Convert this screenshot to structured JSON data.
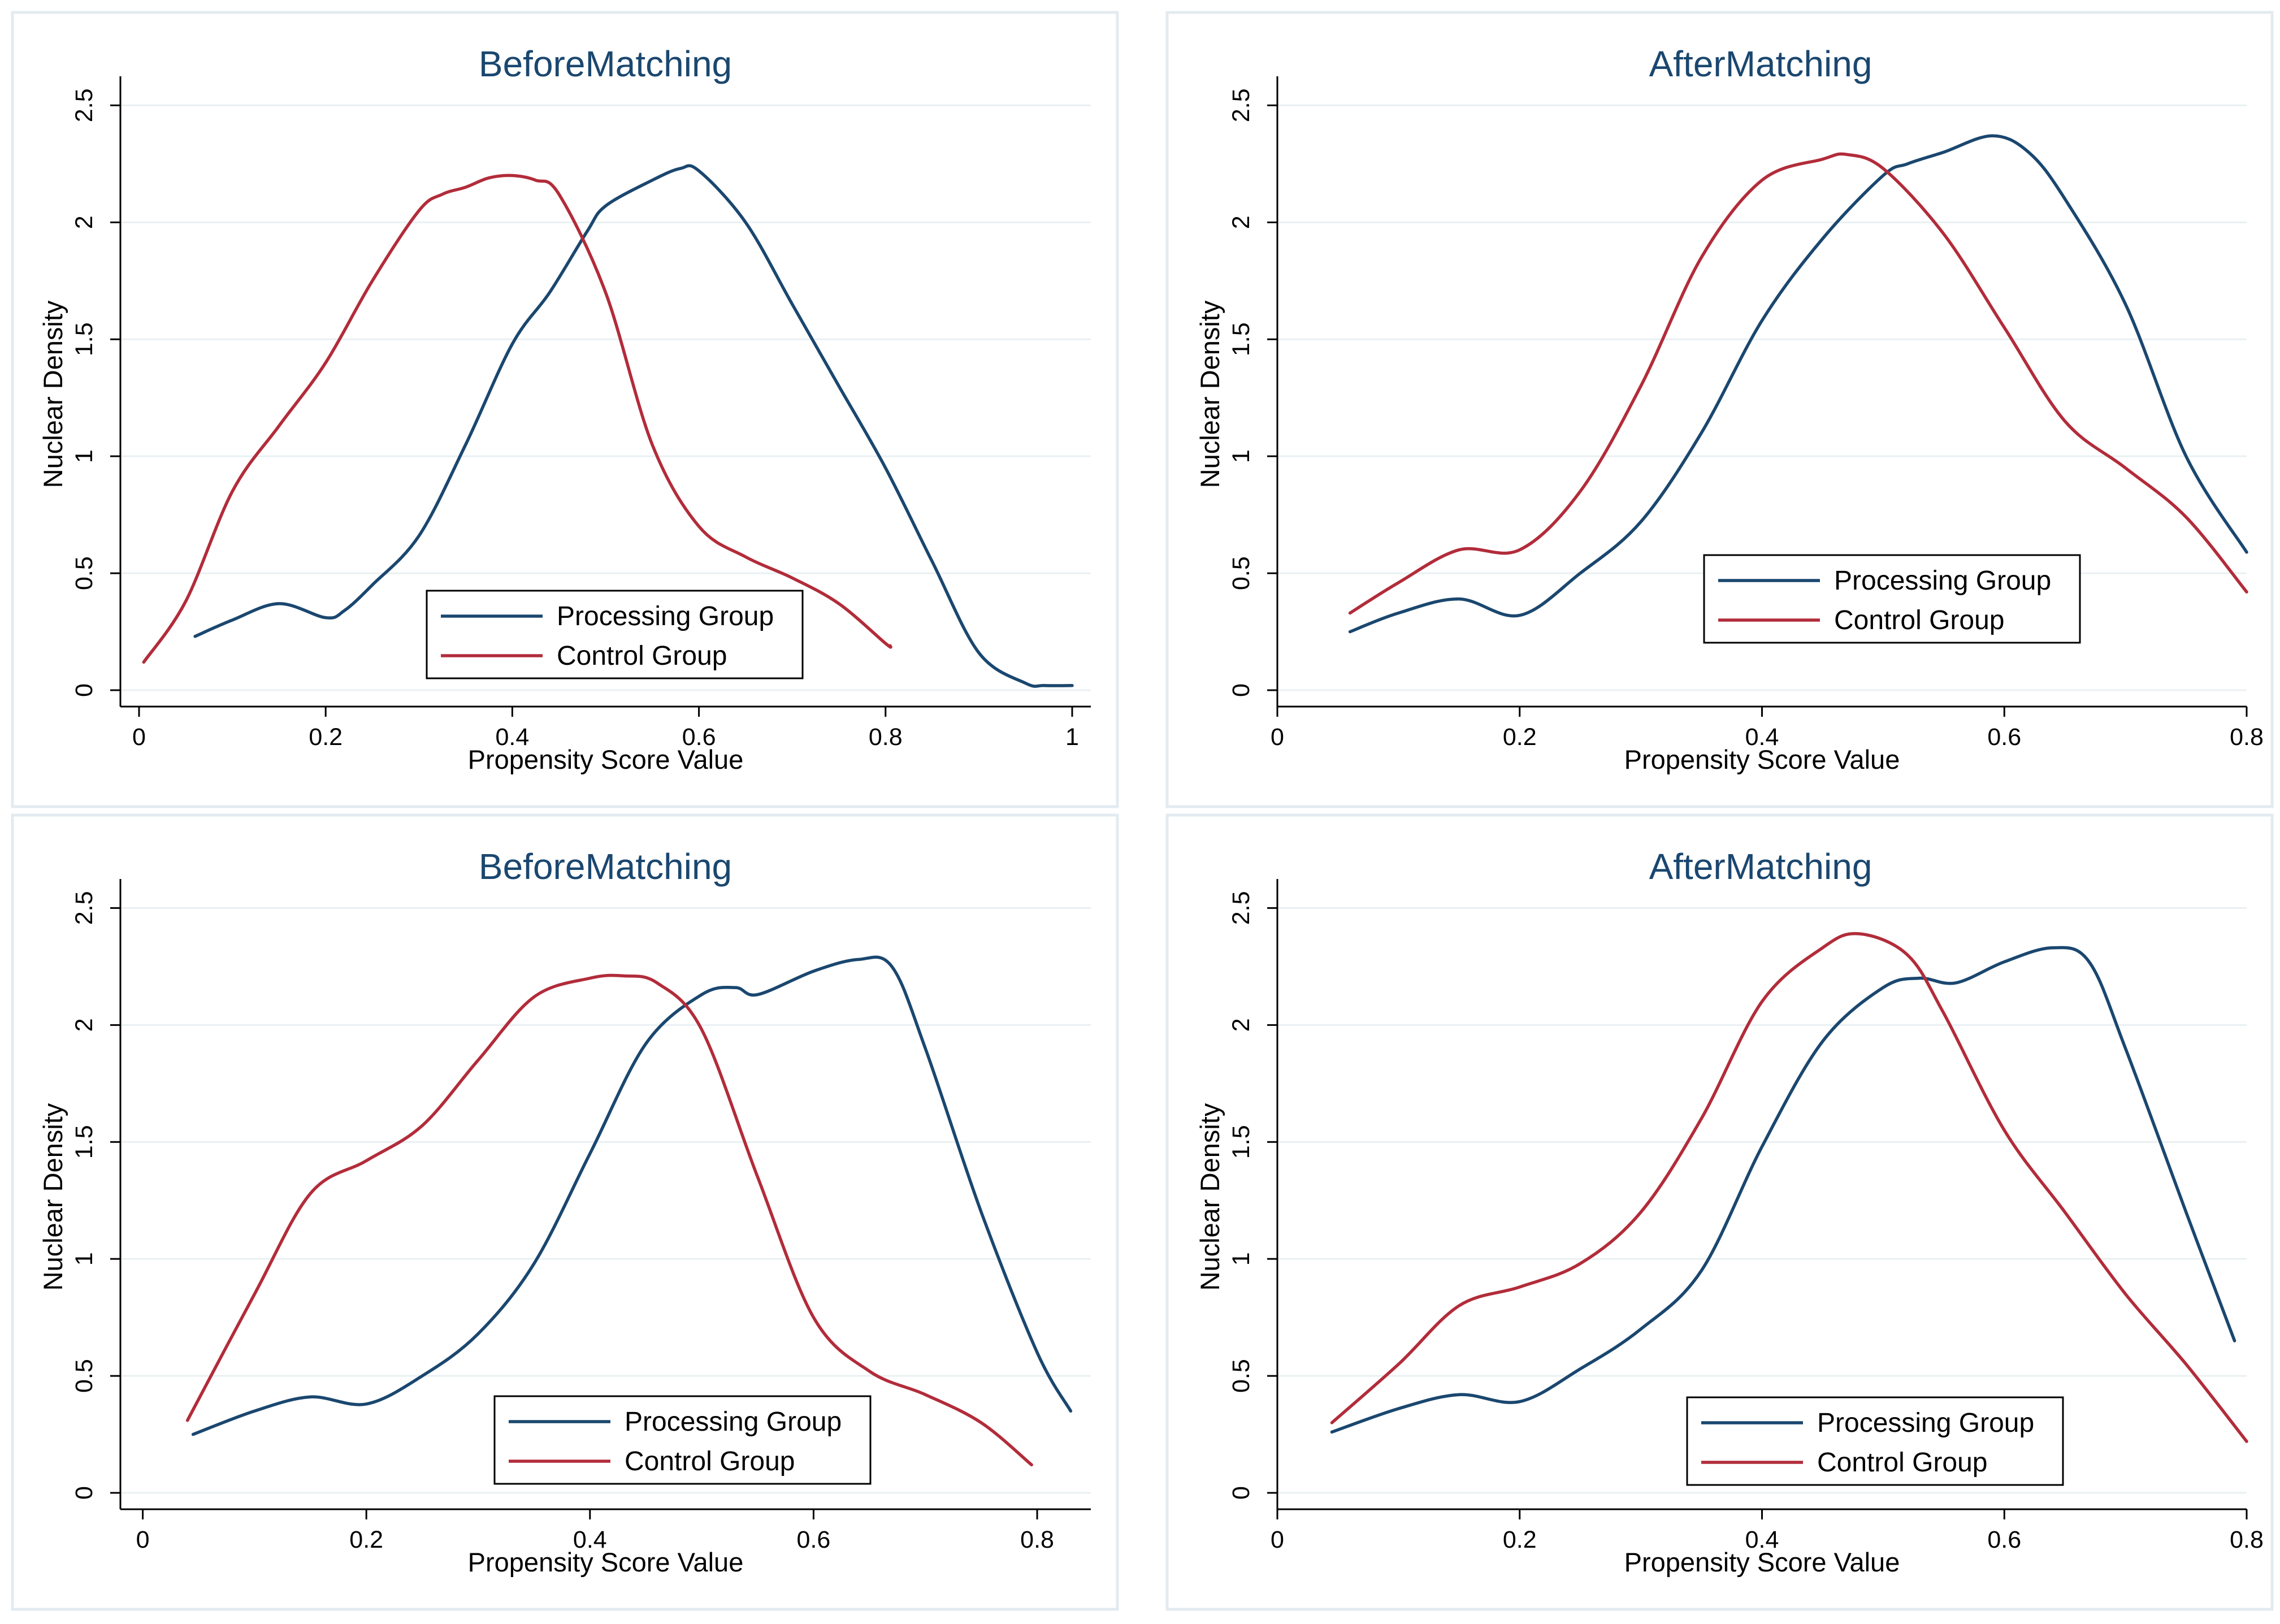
{
  "colors": {
    "processing": "#1a476f",
    "control": "#b22c3a",
    "title": "#1a476f"
  },
  "chart_data": [
    {
      "type": "line",
      "title": "BeforeMatching",
      "xlabel": "Propensity Score Value",
      "ylabel": "Nuclear Density",
      "xlim": [
        -0.02,
        1.02
      ],
      "ylim": [
        -0.07,
        2.6
      ],
      "xticks": [
        0,
        0.2,
        0.4,
        0.6,
        0.8,
        1
      ],
      "xtick_labels": [
        "0",
        "0.2",
        "0.4",
        "0.6",
        "0.8",
        "1"
      ],
      "yticks": [
        0,
        0.5,
        1,
        1.5,
        2,
        2.5
      ],
      "ytick_labels": [
        "0",
        "0.5",
        "1",
        "1.5",
        "2",
        "2.5"
      ],
      "grid": true,
      "legend_position": "bottom-center",
      "series": [
        {
          "name": "Processing Group",
          "color": "#1a476f",
          "x": [
            0.06,
            0.1,
            0.15,
            0.2,
            0.22,
            0.25,
            0.3,
            0.35,
            0.4,
            0.44,
            0.48,
            0.5,
            0.55,
            0.58,
            0.6,
            0.65,
            0.7,
            0.75,
            0.8,
            0.85,
            0.9,
            0.95,
            0.97,
            1.0
          ],
          "y": [
            0.23,
            0.3,
            0.37,
            0.31,
            0.34,
            0.45,
            0.66,
            1.05,
            1.48,
            1.7,
            1.96,
            2.07,
            2.18,
            2.23,
            2.22,
            2.0,
            1.65,
            1.3,
            0.95,
            0.55,
            0.16,
            0.03,
            0.02,
            0.02
          ]
        },
        {
          "name": "Control Group",
          "color": "#b22c3a",
          "x": [
            0.005,
            0.05,
            0.1,
            0.15,
            0.2,
            0.25,
            0.3,
            0.325,
            0.35,
            0.375,
            0.4,
            0.425,
            0.45,
            0.5,
            0.55,
            0.6,
            0.65,
            0.7,
            0.75,
            0.8,
            0.805
          ],
          "y": [
            0.12,
            0.38,
            0.85,
            1.13,
            1.4,
            1.75,
            2.05,
            2.12,
            2.15,
            2.19,
            2.2,
            2.18,
            2.12,
            1.7,
            1.05,
            0.7,
            0.57,
            0.48,
            0.37,
            0.2,
            0.19
          ]
        }
      ]
    },
    {
      "type": "line",
      "title": "AfterMatching",
      "xlabel": "Propensity Score Value",
      "ylabel": "Nuclear Density",
      "xlim": [
        0,
        0.8
      ],
      "ylim": [
        -0.07,
        2.6
      ],
      "xticks": [
        0,
        0.2,
        0.4,
        0.6,
        0.8
      ],
      "xtick_labels": [
        "0",
        "0.2",
        "0.4",
        "0.6",
        "0.8"
      ],
      "yticks": [
        0,
        0.5,
        1,
        1.5,
        2,
        2.5
      ],
      "ytick_labels": [
        "0",
        "0.5",
        "1",
        "1.5",
        "2",
        "2.5"
      ],
      "grid": true,
      "legend_position": "bottom-right",
      "series": [
        {
          "name": "Processing Group",
          "color": "#1a476f",
          "x": [
            0.06,
            0.1,
            0.15,
            0.2,
            0.25,
            0.3,
            0.35,
            0.4,
            0.45,
            0.5,
            0.52,
            0.55,
            0.59,
            0.62,
            0.65,
            0.7,
            0.75,
            0.8
          ],
          "y": [
            0.25,
            0.33,
            0.39,
            0.32,
            0.5,
            0.72,
            1.1,
            1.58,
            1.93,
            2.2,
            2.25,
            2.3,
            2.37,
            2.3,
            2.1,
            1.65,
            1.0,
            0.59
          ]
        },
        {
          "name": "Control Group",
          "color": "#b22c3a",
          "x": [
            0.06,
            0.1,
            0.15,
            0.2,
            0.25,
            0.3,
            0.35,
            0.4,
            0.45,
            0.47,
            0.5,
            0.55,
            0.6,
            0.65,
            0.7,
            0.75,
            0.8
          ],
          "y": [
            0.33,
            0.46,
            0.6,
            0.6,
            0.85,
            1.3,
            1.85,
            2.18,
            2.27,
            2.29,
            2.23,
            1.95,
            1.55,
            1.15,
            0.95,
            0.74,
            0.42
          ]
        }
      ]
    },
    {
      "type": "line",
      "title": "BeforeMatching",
      "xlabel": "Propensity Score Value",
      "ylabel": "Nuclear Density",
      "xlim": [
        -0.02,
        0.848
      ],
      "ylim": [
        -0.07,
        2.6
      ],
      "xticks": [
        0,
        0.2,
        0.4,
        0.6,
        0.8
      ],
      "xtick_labels": [
        "0",
        "0.2",
        "0.4",
        "0.6",
        "0.8"
      ],
      "yticks": [
        0,
        0.5,
        1,
        1.5,
        2,
        2.5
      ],
      "ytick_labels": [
        "0",
        "0.5",
        "1",
        "1.5",
        "2",
        "2.5"
      ],
      "grid": true,
      "legend_position": "bottom-center",
      "series": [
        {
          "name": "Processing Group",
          "color": "#1a476f",
          "x": [
            0.045,
            0.1,
            0.15,
            0.2,
            0.25,
            0.3,
            0.35,
            0.4,
            0.45,
            0.5,
            0.53,
            0.55,
            0.6,
            0.64,
            0.67,
            0.7,
            0.75,
            0.8,
            0.83
          ],
          "y": [
            0.25,
            0.35,
            0.41,
            0.38,
            0.5,
            0.68,
            0.98,
            1.45,
            1.92,
            2.13,
            2.16,
            2.13,
            2.23,
            2.28,
            2.25,
            1.9,
            1.2,
            0.6,
            0.35
          ]
        },
        {
          "name": "Control Group",
          "color": "#b22c3a",
          "x": [
            0.04,
            0.1,
            0.15,
            0.2,
            0.25,
            0.3,
            0.35,
            0.4,
            0.43,
            0.46,
            0.5,
            0.55,
            0.6,
            0.65,
            0.7,
            0.75,
            0.795
          ],
          "y": [
            0.31,
            0.85,
            1.28,
            1.42,
            1.57,
            1.85,
            2.12,
            2.2,
            2.21,
            2.18,
            1.98,
            1.35,
            0.75,
            0.52,
            0.42,
            0.3,
            0.12
          ]
        }
      ]
    },
    {
      "type": "line",
      "title": "AfterMatching",
      "xlabel": "Propensity Score Value",
      "ylabel": "Nuclear Density",
      "xlim": [
        0,
        0.8
      ],
      "ylim": [
        -0.07,
        2.6
      ],
      "xticks": [
        0,
        0.2,
        0.4,
        0.6,
        0.8
      ],
      "xtick_labels": [
        "0",
        "0.2",
        "0.4",
        "0.6",
        "0.8"
      ],
      "yticks": [
        0,
        0.5,
        1,
        1.5,
        2,
        2.5
      ],
      "ytick_labels": [
        "0",
        "0.5",
        "1",
        "1.5",
        "2",
        "2.5"
      ],
      "grid": true,
      "legend_position": "bottom-right",
      "series": [
        {
          "name": "Processing Group",
          "color": "#1a476f",
          "x": [
            0.045,
            0.1,
            0.15,
            0.2,
            0.25,
            0.3,
            0.35,
            0.4,
            0.45,
            0.5,
            0.53,
            0.56,
            0.6,
            0.64,
            0.67,
            0.7,
            0.75,
            0.79
          ],
          "y": [
            0.26,
            0.36,
            0.42,
            0.39,
            0.53,
            0.7,
            0.95,
            1.48,
            1.93,
            2.16,
            2.2,
            2.18,
            2.27,
            2.33,
            2.27,
            1.9,
            1.2,
            0.65
          ]
        },
        {
          "name": "Control Group",
          "color": "#b22c3a",
          "x": [
            0.045,
            0.1,
            0.15,
            0.2,
            0.25,
            0.3,
            0.35,
            0.4,
            0.45,
            0.48,
            0.52,
            0.55,
            0.6,
            0.65,
            0.7,
            0.75,
            0.8
          ],
          "y": [
            0.3,
            0.55,
            0.8,
            0.88,
            0.98,
            1.2,
            1.6,
            2.1,
            2.33,
            2.39,
            2.3,
            2.05,
            1.55,
            1.2,
            0.85,
            0.55,
            0.22
          ]
        }
      ]
    }
  ]
}
